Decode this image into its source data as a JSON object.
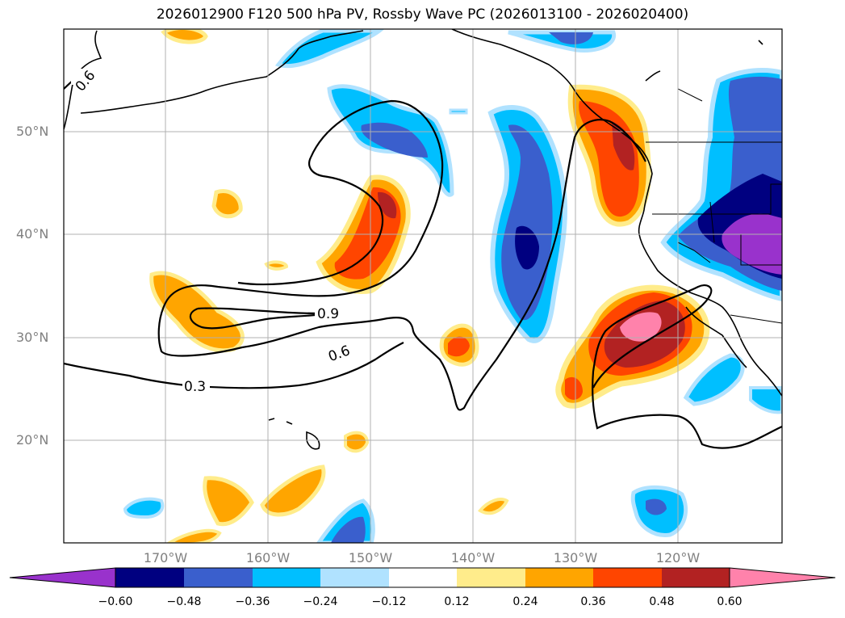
{
  "title": "2026012900 F120 500 hPa PV, Rossby Wave PC (2026013100 - 2026020400)",
  "lat_labels": [
    "50°N",
    "40°N",
    "30°N",
    "20°N"
  ],
  "lon_labels": [
    "170°W",
    "160°W",
    "150°W",
    "140°W",
    "130°W",
    "120°W"
  ],
  "contour_labels": [
    "0.6",
    "0.9",
    "0.6",
    "0.3"
  ],
  "colorbar": {
    "ticks": [
      "−0.60",
      "−0.48",
      "−0.36",
      "−0.24",
      "−0.12",
      "0.12",
      "0.24",
      "0.36",
      "0.48",
      "0.60"
    ],
    "colors": [
      "#9932cc",
      "#000080",
      "#3a5fcd",
      "#00bfff",
      "#b0e2ff",
      "#ffffff",
      "#ffec8b",
      "#ffa500",
      "#ff4500",
      "#b22222",
      "#ff82ab"
    ]
  }
}
